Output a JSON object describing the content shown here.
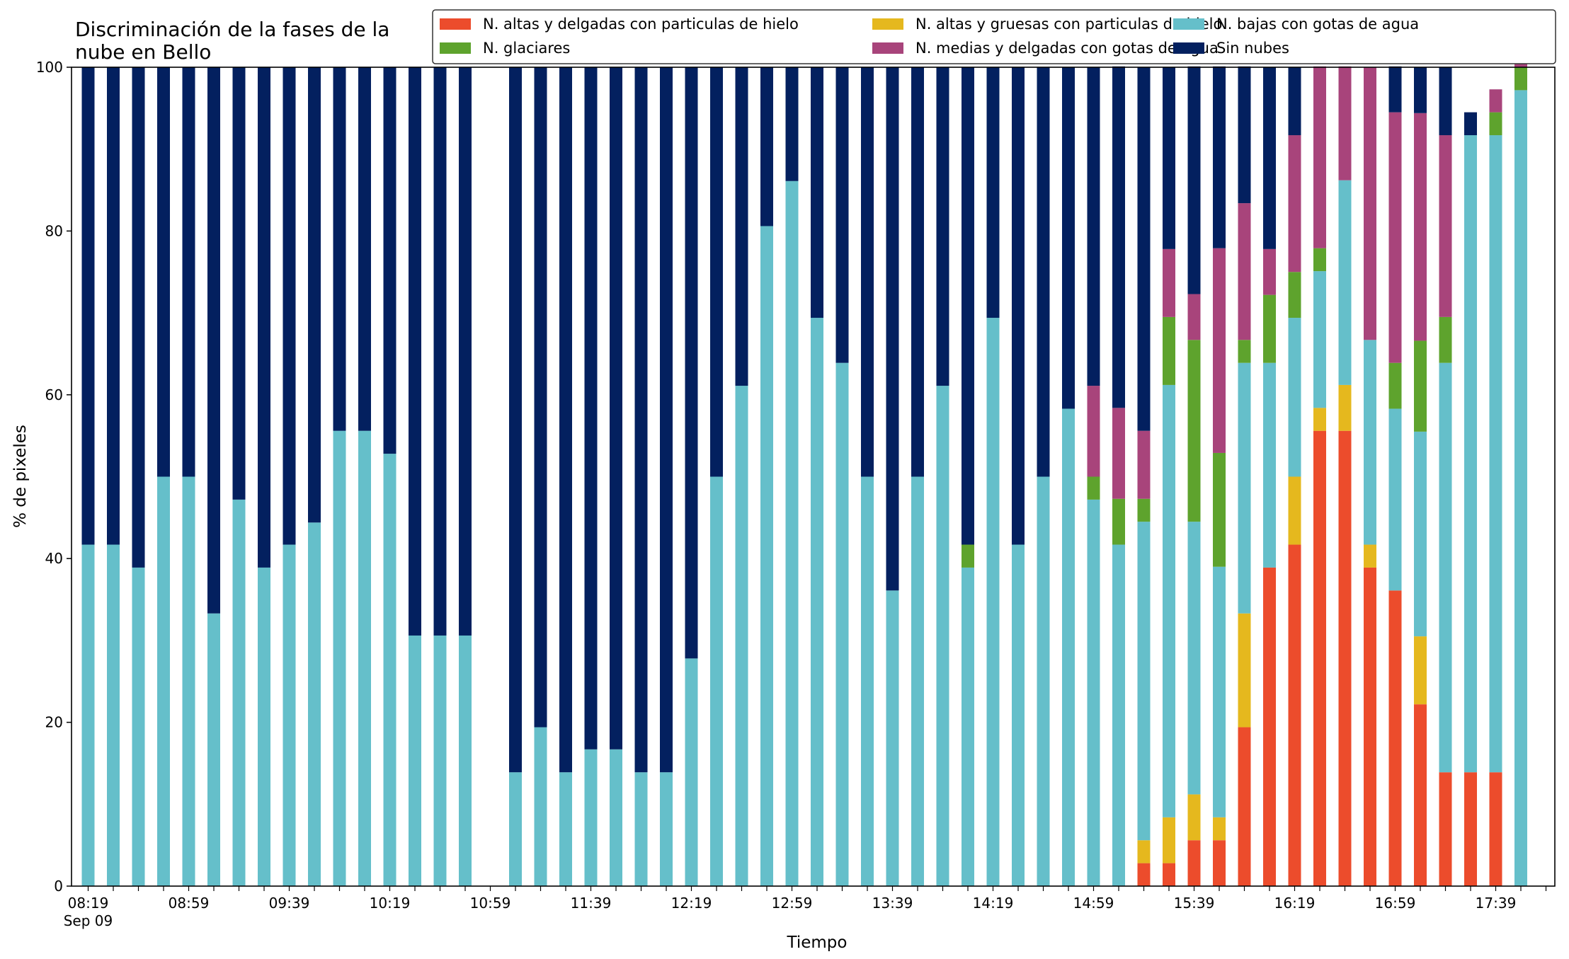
{
  "chart_data": {
    "type": "bar",
    "stacked": true,
    "title_lines": [
      "Discriminación de la fases de la",
      "nube en Bello"
    ],
    "xlabel": "Tiempo",
    "ylabel": "% de pixeles",
    "ylim": [
      0,
      100
    ],
    "yticks": [
      0,
      20,
      40,
      60,
      80,
      100
    ],
    "xtick_labels": [
      {
        "index": 0,
        "label": "08:19",
        "sublabel": "Sep 09"
      },
      {
        "index": 4,
        "label": "08:59"
      },
      {
        "index": 8,
        "label": "09:39"
      },
      {
        "index": 12,
        "label": "10:19"
      },
      {
        "index": 16,
        "label": "10:59"
      },
      {
        "index": 20,
        "label": "11:39"
      },
      {
        "index": 24,
        "label": "12:19"
      },
      {
        "index": 28,
        "label": "12:59"
      },
      {
        "index": 32,
        "label": "13:39"
      },
      {
        "index": 36,
        "label": "14:19"
      },
      {
        "index": 40,
        "label": "14:59"
      },
      {
        "index": 44,
        "label": "15:39"
      },
      {
        "index": 48,
        "label": "16:19"
      },
      {
        "index": 52,
        "label": "16:59"
      },
      {
        "index": 56,
        "label": "17:39"
      }
    ],
    "grid": false,
    "legend_position": "top-right",
    "legend_columns": 3,
    "series": [
      {
        "name": "N. altas y delgadas con particulas de hielo",
        "color": "#ec4c2c",
        "values": [
          0,
          0,
          0,
          0,
          0,
          0,
          0,
          0,
          0,
          0,
          0,
          0,
          0,
          0,
          0,
          0,
          0,
          0,
          0,
          0,
          0,
          0,
          0,
          0,
          0,
          0,
          0,
          0,
          0,
          0,
          0,
          0,
          0,
          0,
          0,
          0,
          0,
          0,
          0,
          0,
          0,
          0,
          2.8,
          2.8,
          5.6,
          5.6,
          19.4,
          38.9,
          41.7,
          55.6,
          55.6,
          38.9,
          36.1,
          22.2,
          13.9,
          13.9,
          13.9,
          0
        ]
      },
      {
        "name": "N. altas y gruesas con particulas de hielo",
        "color": "#e5b81e",
        "values": [
          0,
          0,
          0,
          0,
          0,
          0,
          0,
          0,
          0,
          0,
          0,
          0,
          0,
          0,
          0,
          0,
          0,
          0,
          0,
          0,
          0,
          0,
          0,
          0,
          0,
          0,
          0,
          0,
          0,
          0,
          0,
          0,
          0,
          0,
          0,
          0,
          0,
          0,
          0,
          0,
          0,
          0,
          2.8,
          5.6,
          5.6,
          2.8,
          13.9,
          0,
          8.3,
          2.8,
          5.6,
          2.8,
          0,
          8.3,
          0,
          0,
          0,
          0
        ]
      },
      {
        "name": "N. bajas con gotas de agua",
        "color": "#65bfca",
        "values": [
          41.7,
          41.7,
          38.9,
          50.0,
          50.0,
          33.3,
          47.2,
          38.9,
          41.7,
          44.4,
          55.6,
          55.6,
          52.8,
          30.6,
          30.6,
          30.6,
          0,
          13.9,
          19.4,
          13.9,
          16.7,
          16.7,
          13.9,
          13.9,
          27.8,
          50.0,
          61.1,
          80.6,
          86.1,
          69.4,
          63.9,
          50.0,
          36.1,
          50.0,
          61.1,
          38.9,
          69.4,
          41.7,
          50.0,
          58.3,
          47.2,
          41.7,
          38.9,
          52.8,
          33.3,
          30.6,
          30.6,
          25.0,
          19.4,
          16.7,
          25.0,
          25.0,
          22.2,
          25.0,
          50.0,
          77.8,
          77.8,
          97.2
        ]
      },
      {
        "name": "N. glaciares",
        "color": "#5ea32d",
        "values": [
          0,
          0,
          0,
          0,
          0,
          0,
          0,
          0,
          0,
          0,
          0,
          0,
          0,
          0,
          0,
          0,
          0,
          0,
          0,
          0,
          0,
          0,
          0,
          0,
          0,
          0,
          0,
          0,
          0,
          0,
          0,
          0,
          0,
          0,
          0,
          2.8,
          0,
          0,
          0,
          0,
          2.8,
          5.6,
          2.8,
          8.3,
          22.2,
          13.9,
          2.8,
          8.3,
          5.6,
          2.8,
          0,
          0,
          5.6,
          11.1,
          5.6,
          0,
          2.8,
          2.8
        ]
      },
      {
        "name": "N. medias y delgadas con gotas de agua",
        "color": "#a8447b",
        "values": [
          0,
          0,
          0,
          0,
          0,
          0,
          0,
          0,
          0,
          0,
          0,
          0,
          0,
          0,
          0,
          0,
          0,
          0,
          0,
          0,
          0,
          0,
          0,
          0,
          0,
          0,
          0,
          0,
          0,
          0,
          0,
          0,
          0,
          0,
          0,
          0,
          0,
          0,
          0,
          0,
          11.1,
          11.1,
          8.3,
          8.3,
          5.6,
          25.0,
          16.7,
          5.6,
          16.7,
          22.2,
          13.9,
          33.3,
          30.6,
          27.8,
          22.2,
          0,
          2.8,
          5.6
        ]
      },
      {
        "name": "Sin nubes",
        "color": "#03205f",
        "values": [
          58.3,
          58.3,
          61.1,
          50.0,
          50.0,
          66.7,
          52.8,
          61.1,
          58.3,
          55.6,
          44.4,
          44.4,
          47.2,
          69.4,
          69.4,
          69.4,
          0,
          86.1,
          80.6,
          86.1,
          83.3,
          83.3,
          86.1,
          86.1,
          72.2,
          50.0,
          38.9,
          19.4,
          13.9,
          30.6,
          36.1,
          50.0,
          63.9,
          50.0,
          38.9,
          58.3,
          30.6,
          58.3,
          50.0,
          41.7,
          38.9,
          41.7,
          44.4,
          22.2,
          27.8,
          22.2,
          16.7,
          22.2,
          8.3,
          0,
          0,
          0,
          5.6,
          5.6,
          8.3,
          2.8,
          0,
          0
        ]
      }
    ]
  }
}
